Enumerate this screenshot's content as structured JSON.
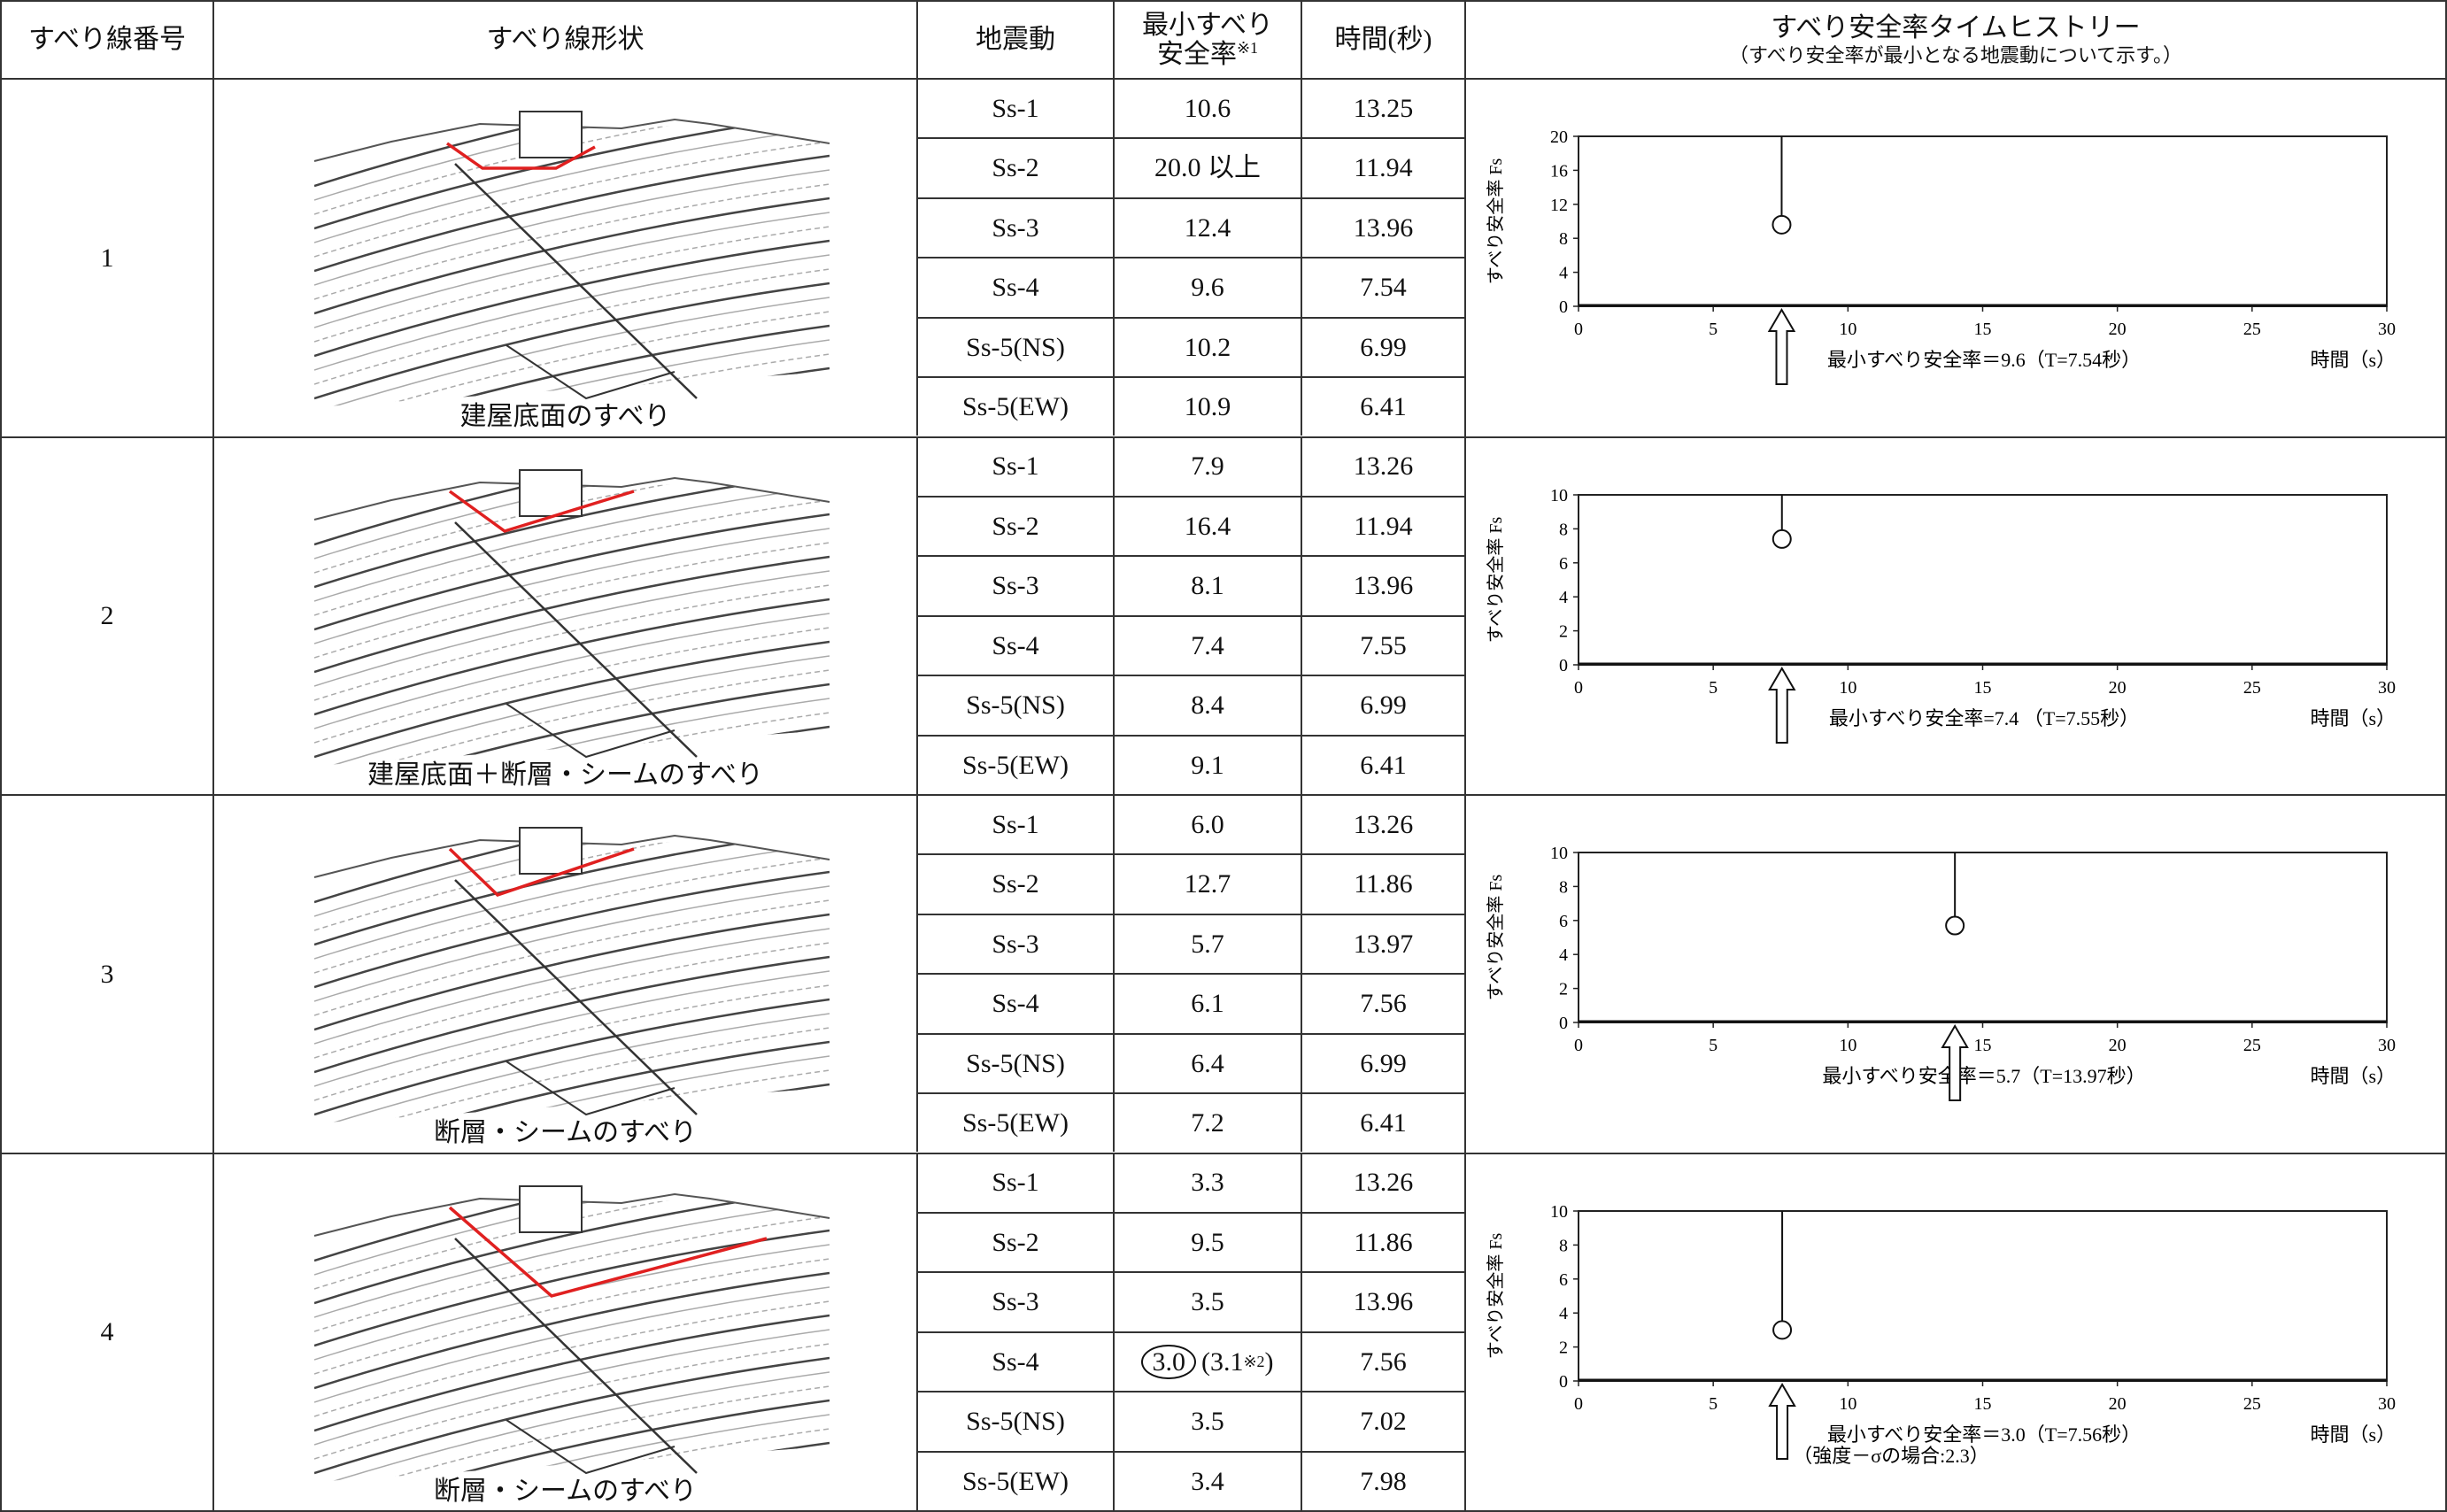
{
  "header": {
    "slip_no": "すべり線番号",
    "slip_shape": "すべり線形状",
    "motion": "地震動",
    "min_fs": "最小すべり",
    "min_fs_2": "安全率",
    "min_fs_sup": "※1",
    "time": "時間(秒)",
    "history": "すべり安全率タイムヒストリー",
    "history_note": "（すべり安全率が最小となる地震動について示す。）"
  },
  "groups": [
    {
      "no": "1",
      "caption": "建屋底面のすべり",
      "rows": [
        {
          "motion": "Ss-1",
          "fs": "10.6",
          "time": "13.25"
        },
        {
          "motion": "Ss-2",
          "fs": "20.0 以上",
          "time": "11.94"
        },
        {
          "motion": "Ss-3",
          "fs": "12.4",
          "time": "13.96"
        },
        {
          "motion": "Ss-4",
          "fs": "9.6",
          "time": "7.54"
        },
        {
          "motion": "Ss-5(NS)",
          "fs": "10.2",
          "time": "6.99"
        },
        {
          "motion": "Ss-5(EW)",
          "fs": "10.9",
          "time": "6.41"
        }
      ],
      "chart": {
        "type": "line",
        "y_label": "すべり安全率 Fs",
        "x_label": "時間（s）",
        "annotation": "最小すべり安全率＝9.6（T=7.54秒）",
        "xlim": [
          0,
          30
        ],
        "xticks": [
          0,
          5,
          10,
          15,
          20,
          25,
          30
        ],
        "ylim": [
          0,
          20
        ],
        "yticks": [
          0,
          4,
          8,
          12,
          16,
          20
        ],
        "min_point": {
          "x": 7.54,
          "y": 9.6
        }
      }
    },
    {
      "no": "2",
      "caption": "建屋底面＋断層・シームのすべり",
      "rows": [
        {
          "motion": "Ss-1",
          "fs": "7.9",
          "time": "13.26"
        },
        {
          "motion": "Ss-2",
          "fs": "16.4",
          "time": "11.94"
        },
        {
          "motion": "Ss-3",
          "fs": "8.1",
          "time": "13.96"
        },
        {
          "motion": "Ss-4",
          "fs": "7.4",
          "time": "7.55"
        },
        {
          "motion": "Ss-5(NS)",
          "fs": "8.4",
          "time": "6.99"
        },
        {
          "motion": "Ss-5(EW)",
          "fs": "9.1",
          "time": "6.41"
        }
      ],
      "chart": {
        "type": "line",
        "y_label": "すべり安全率 Fs",
        "x_label": "時間（s）",
        "annotation": "最小すべり安全率=7.4 （T=7.55秒）",
        "xlim": [
          0,
          30
        ],
        "xticks": [
          0,
          5,
          10,
          15,
          20,
          25,
          30
        ],
        "ylim": [
          0,
          10
        ],
        "yticks": [
          0,
          2,
          4,
          6,
          8,
          10
        ],
        "min_point": {
          "x": 7.55,
          "y": 7.4
        }
      }
    },
    {
      "no": "3",
      "caption": "断層・シームのすべり",
      "rows": [
        {
          "motion": "Ss-1",
          "fs": "6.0",
          "time": "13.26"
        },
        {
          "motion": "Ss-2",
          "fs": "12.7",
          "time": "11.86"
        },
        {
          "motion": "Ss-3",
          "fs": "5.7",
          "time": "13.97"
        },
        {
          "motion": "Ss-4",
          "fs": "6.1",
          "time": "7.56"
        },
        {
          "motion": "Ss-5(NS)",
          "fs": "6.4",
          "time": "6.99"
        },
        {
          "motion": "Ss-5(EW)",
          "fs": "7.2",
          "time": "6.41"
        }
      ],
      "chart": {
        "type": "line",
        "y_label": "すべり安全率 Fs",
        "x_label": "時間（s）",
        "annotation": "最小すべり安全率＝5.7（T=13.97秒）",
        "xlim": [
          0,
          30
        ],
        "xticks": [
          0,
          5,
          10,
          15,
          20,
          25,
          30
        ],
        "ylim": [
          0,
          10
        ],
        "yticks": [
          0,
          2,
          4,
          6,
          8,
          10
        ],
        "min_point": {
          "x": 13.97,
          "y": 5.7
        }
      }
    },
    {
      "no": "4",
      "caption": "断層・シームのすべり",
      "rows": [
        {
          "motion": "Ss-1",
          "fs": "3.3",
          "time": "13.26"
        },
        {
          "motion": "Ss-2",
          "fs": "9.5",
          "time": "11.86"
        },
        {
          "motion": "Ss-3",
          "fs": "3.5",
          "time": "13.96"
        },
        {
          "motion": "Ss-4",
          "fs": "3.0",
          "fs_note": "(3.1",
          "fs_note_sup": "※2",
          "fs_note_end": ")",
          "time": "7.56"
        },
        {
          "motion": "Ss-5(NS)",
          "fs": "3.5",
          "time": "7.02"
        },
        {
          "motion": "Ss-5(EW)",
          "fs": "3.4",
          "time": "7.98"
        }
      ],
      "chart": {
        "type": "line",
        "y_label": "すべり安全率 Fs",
        "x_label": "時間（s）",
        "annotation": "最小すべり安全率＝3.0（T=7.56秒）",
        "annotation_2": "（強度－σの場合:2.3）",
        "xlim": [
          0,
          30
        ],
        "xticks": [
          0,
          5,
          10,
          15,
          20,
          25,
          30
        ],
        "ylim": [
          0,
          10
        ],
        "yticks": [
          0,
          2,
          4,
          6,
          8,
          10
        ],
        "min_point": {
          "x": 7.56,
          "y": 3.0
        }
      }
    }
  ]
}
